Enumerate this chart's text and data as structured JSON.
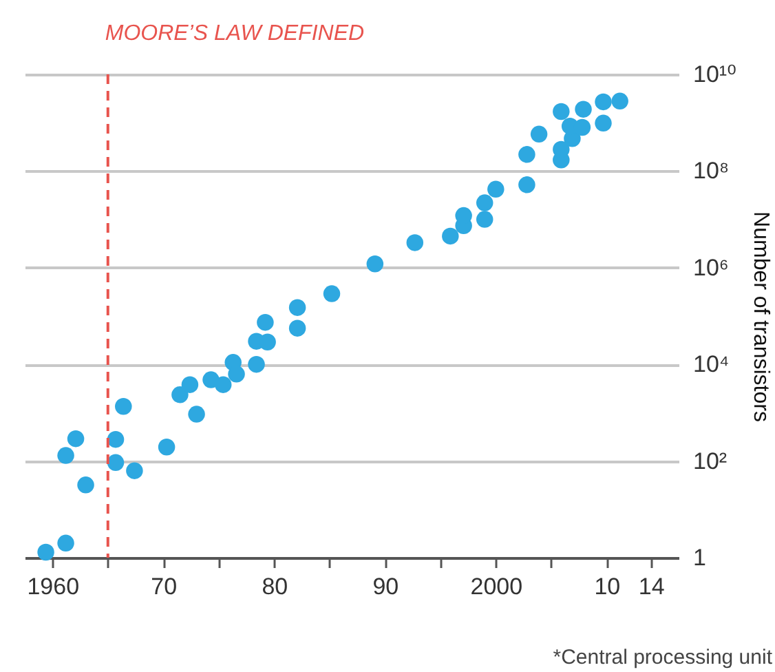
{
  "chart_data": {
    "type": "scatter",
    "ylabel": "Number of transistors",
    "x": [
      1959.4,
      1961.2,
      1961.2,
      1962.1,
      1963,
      1965.7,
      1965.7,
      1966.4,
      1967.4,
      1970.3,
      1971.5,
      1972.4,
      1973,
      1974.3,
      1975.4,
      1976.3,
      1976.6,
      1978.4,
      1978.4,
      1979.4,
      1979.2,
      1982.1,
      1982.1,
      1985.2,
      1989.1,
      1992.7,
      1995.9,
      1997.1,
      1997.1,
      1999,
      1999,
      2000,
      2002.8,
      2002.8,
      2003.9,
      2005.9,
      2005.9,
      2005.9,
      2006.9,
      2006.7,
      2007.8,
      2007.9,
      2009.7,
      2009.7,
      2011.2
    ],
    "series": [
      {
        "color": "#2ea8e0",
        "values": [
          1.3,
          2,
          130,
          290,
          32,
          280,
          93,
          1350,
          63,
          195,
          2350,
          3800,
          930,
          4800,
          3800,
          11000,
          6300,
          10000,
          30000,
          29000,
          74000,
          56000,
          150000,
          290000,
          1200000,
          3300000,
          4500000,
          7400000,
          12000000,
          10000000,
          22000000,
          42000000,
          52000000,
          220000000,
          580000000,
          170000000,
          280000000,
          1700000000,
          470000000,
          850000000,
          800000000,
          1900000000,
          980000000,
          2700000000,
          2800000000
        ]
      }
    ],
    "xlim": [
      1957.5,
      2016.5
    ],
    "xticks": [
      {
        "value": 1960,
        "label": "1960"
      },
      {
        "value": 1965,
        "label": null
      },
      {
        "value": 1970,
        "label": "70"
      },
      {
        "value": 1975,
        "label": null
      },
      {
        "value": 1980,
        "label": "80"
      },
      {
        "value": 1985,
        "label": null
      },
      {
        "value": 1990,
        "label": "90"
      },
      {
        "value": 1995,
        "label": null
      },
      {
        "value": 2000,
        "label": "2000"
      },
      {
        "value": 2005,
        "label": null
      },
      {
        "value": 2010,
        "label": "10"
      },
      {
        "value": 2014,
        "label": "14"
      }
    ],
    "ylim": [
      1,
      10000000000
    ],
    "yticks": [
      {
        "value": 1,
        "label": "1"
      },
      {
        "value": 100,
        "label": "10²"
      },
      {
        "value": 10000,
        "label": "10⁴"
      },
      {
        "value": 1000000,
        "label": "10⁶"
      },
      {
        "value": 100000000,
        "label": "10⁸"
      },
      {
        "value": 10000000000,
        "label": "10¹⁰"
      }
    ],
    "log": "y",
    "grid": "y",
    "marker": "circle",
    "legend": false,
    "ref_lines": [
      {
        "axis": "x",
        "value": 1965,
        "label": "MOORE’S LAW DEFINED",
        "color": "#e8544e",
        "line_style": "dashed"
      }
    ],
    "annotations": [
      "*Central processing unit"
    ]
  }
}
